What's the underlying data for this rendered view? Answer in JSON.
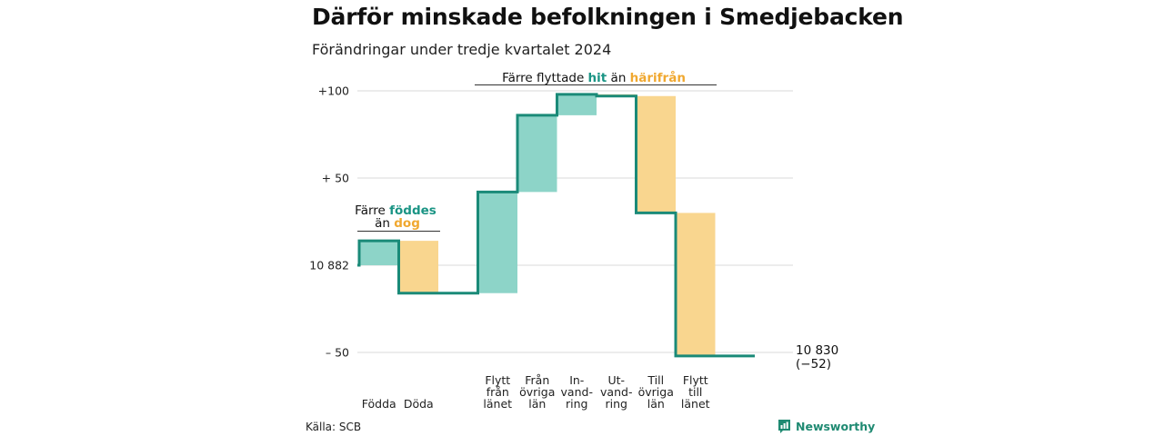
{
  "header": {
    "title": "Därför minskade befolkningen i Smedjebacken",
    "subtitle": "Förändringar under tredje kvartalet 2024"
  },
  "footer": {
    "source": "Källa: SCB",
    "brand": "Newsworthy"
  },
  "colors": {
    "teal_line": "#1a8a78",
    "teal_fill": "#8dd4c8",
    "orange_fill": "#f9d68f",
    "orange_text": "#f0a830",
    "teal_text": "#1a9484",
    "grid": "#d9d9d9"
  },
  "chart_data": {
    "type": "waterfall",
    "baseline_value": 10882,
    "ylim": [
      -55,
      105
    ],
    "y_ticks": [
      {
        "value": 100,
        "label": "+100"
      },
      {
        "value": 50,
        "label": "+ 50"
      },
      {
        "value": 0,
        "label": "10 882"
      },
      {
        "value": -50,
        "label": "– 50"
      }
    ],
    "steps": [
      {
        "label": [
          "Födda"
        ],
        "change": 14,
        "kind": "inflow"
      },
      {
        "label": [
          "Döda"
        ],
        "change": -30,
        "kind": "outflow"
      },
      {
        "label": [
          ""
        ],
        "change": 0,
        "kind": "none"
      },
      {
        "label": [
          "Flytt",
          "från",
          "länet"
        ],
        "change": 58,
        "kind": "inflow"
      },
      {
        "label": [
          "Från",
          "övriga",
          "län"
        ],
        "change": 44,
        "kind": "inflow"
      },
      {
        "label": [
          "In-",
          "vand-",
          "ring"
        ],
        "change": 12,
        "kind": "inflow"
      },
      {
        "label": [
          "Ut-",
          "vand-",
          "ring"
        ],
        "change": -1,
        "kind": "outflow"
      },
      {
        "label": [
          "Till",
          "övriga",
          "län"
        ],
        "change": -67,
        "kind": "outflow"
      },
      {
        "label": [
          "Flytt",
          "till",
          "länet"
        ],
        "change": -82,
        "kind": "outflow"
      },
      {
        "label": [
          ""
        ],
        "change": 0,
        "kind": "none"
      }
    ],
    "end_label": [
      "10 830",
      "(−52)"
    ],
    "annotations": [
      {
        "parts": [
          [
            "Färre ",
            "plain"
          ],
          [
            "föddes",
            "teal"
          ]
        ],
        "parts2": [
          [
            "än ",
            "plain"
          ],
          [
            "dog",
            "orange"
          ]
        ]
      },
      {
        "parts": [
          [
            "Färre flyttade ",
            "plain"
          ],
          [
            "hit",
            "teal"
          ],
          [
            " än ",
            "plain"
          ],
          [
            "härifrån",
            "orange"
          ]
        ]
      }
    ]
  }
}
